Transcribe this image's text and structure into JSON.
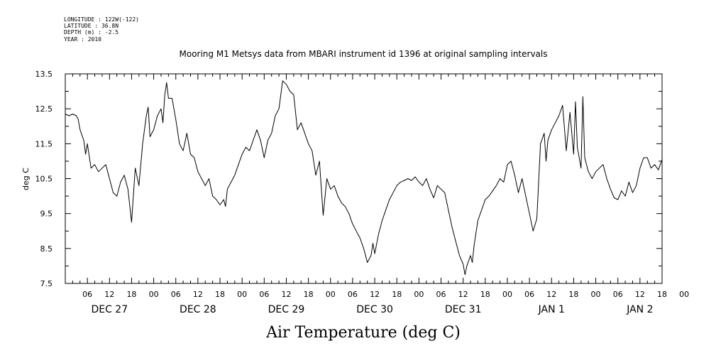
{
  "meta": {
    "longitude": "LONGITUDE : 122W(-122)",
    "latitude": "LATITUDE : 36.8N",
    "depth": "DEPTH (m) : -2.5",
    "year": "YEAR : 2010"
  },
  "chart_data": {
    "type": "line",
    "title": "Mooring M1 Metsys data from MBARI instrument id 1396 at original sampling intervals",
    "xlabel": "Air Temperature (deg C)",
    "ylabel": "deg C",
    "ylim": [
      7.5,
      13.5
    ],
    "yticks": [
      "13.5",
      "12.5",
      "11.5",
      "10.5",
      "9.5",
      "8.5",
      "7.5"
    ],
    "xlim_hours": [
      0,
      162
    ],
    "hour_ticks": [
      "06",
      "12",
      "18",
      "00",
      "06",
      "12",
      "18",
      "00",
      "06",
      "12",
      "18",
      "00",
      "06",
      "12",
      "18",
      "00",
      "06",
      "12",
      "18",
      "00",
      "06",
      "12",
      "18",
      "00",
      "06",
      "12",
      "18",
      "00"
    ],
    "day_labels": [
      "DEC 27",
      "DEC 28",
      "DEC 29",
      "DEC 30",
      "DEC 31",
      "JAN  1",
      "JAN  2"
    ],
    "grid": false,
    "series": [
      {
        "values": [
          [
            0,
            12.35
          ],
          [
            1,
            12.3
          ],
          [
            2,
            12.35
          ],
          [
            3,
            12.3
          ],
          [
            3.5,
            12.2
          ],
          [
            4,
            11.9
          ],
          [
            5,
            11.6
          ],
          [
            5.5,
            11.2
          ],
          [
            6,
            11.5
          ],
          [
            7,
            10.8
          ],
          [
            8,
            10.9
          ],
          [
            9,
            10.7
          ],
          [
            10,
            10.8
          ],
          [
            11,
            10.9
          ],
          [
            12,
            10.5
          ],
          [
            13,
            10.1
          ],
          [
            14,
            10.0
          ],
          [
            15,
            10.4
          ],
          [
            16,
            10.6
          ],
          [
            17,
            10.2
          ],
          [
            18,
            9.25
          ],
          [
            19,
            10.8
          ],
          [
            20,
            10.3
          ],
          [
            21,
            11.5
          ],
          [
            22,
            12.3
          ],
          [
            22.5,
            12.55
          ],
          [
            23,
            11.7
          ],
          [
            24,
            11.9
          ],
          [
            25,
            12.3
          ],
          [
            26,
            12.5
          ],
          [
            26.5,
            12.1
          ],
          [
            27,
            12.9
          ],
          [
            27.5,
            13.25
          ],
          [
            28,
            12.8
          ],
          [
            29,
            12.8
          ],
          [
            30,
            12.2
          ],
          [
            31,
            11.5
          ],
          [
            32,
            11.3
          ],
          [
            33,
            11.8
          ],
          [
            34,
            11.2
          ],
          [
            35,
            11.1
          ],
          [
            36,
            10.7
          ],
          [
            37,
            10.5
          ],
          [
            38,
            10.3
          ],
          [
            39,
            10.5
          ],
          [
            40,
            10.0
          ],
          [
            41,
            9.9
          ],
          [
            42,
            9.75
          ],
          [
            43,
            9.9
          ],
          [
            43.5,
            9.7
          ],
          [
            44,
            10.2
          ],
          [
            45,
            10.4
          ],
          [
            46,
            10.6
          ],
          [
            47,
            10.9
          ],
          [
            48,
            11.2
          ],
          [
            49,
            11.4
          ],
          [
            50,
            11.3
          ],
          [
            51,
            11.6
          ],
          [
            52,
            11.9
          ],
          [
            53,
            11.6
          ],
          [
            54,
            11.1
          ],
          [
            55,
            11.6
          ],
          [
            56,
            11.8
          ],
          [
            57,
            12.3
          ],
          [
            58,
            12.5
          ],
          [
            59,
            13.3
          ],
          [
            60,
            13.2
          ],
          [
            61,
            13.0
          ],
          [
            62,
            12.9
          ],
          [
            63,
            11.9
          ],
          [
            64,
            12.1
          ],
          [
            65,
            11.8
          ],
          [
            66,
            11.5
          ],
          [
            67,
            11.3
          ],
          [
            68,
            10.6
          ],
          [
            69,
            11.0
          ],
          [
            70,
            9.45
          ],
          [
            71,
            10.5
          ],
          [
            72,
            10.2
          ],
          [
            73,
            10.3
          ],
          [
            74,
            10.0
          ],
          [
            75,
            9.8
          ],
          [
            76,
            9.7
          ],
          [
            77,
            9.5
          ],
          [
            78,
            9.2
          ],
          [
            79,
            9.0
          ],
          [
            80,
            8.8
          ],
          [
            81,
            8.5
          ],
          [
            82,
            8.1
          ],
          [
            83,
            8.3
          ],
          [
            83.5,
            8.65
          ],
          [
            84,
            8.35
          ],
          [
            85,
            8.9
          ],
          [
            86,
            9.3
          ],
          [
            87,
            9.6
          ],
          [
            88,
            9.9
          ],
          [
            89,
            10.1
          ],
          [
            90,
            10.3
          ],
          [
            91,
            10.4
          ],
          [
            92,
            10.45
          ],
          [
            93,
            10.5
          ],
          [
            94,
            10.45
          ],
          [
            95,
            10.55
          ],
          [
            96,
            10.4
          ],
          [
            97,
            10.3
          ],
          [
            98,
            10.5
          ],
          [
            99,
            10.2
          ],
          [
            100,
            9.95
          ],
          [
            101,
            10.3
          ],
          [
            102,
            10.2
          ],
          [
            103,
            10.1
          ],
          [
            104,
            9.6
          ],
          [
            105,
            9.1
          ],
          [
            106,
            8.7
          ],
          [
            107,
            8.3
          ],
          [
            108,
            8.05
          ],
          [
            108.5,
            7.75
          ],
          [
            109,
            8.0
          ],
          [
            110,
            8.3
          ],
          [
            110.5,
            8.1
          ],
          [
            111,
            8.6
          ],
          [
            112,
            9.3
          ],
          [
            113,
            9.6
          ],
          [
            114,
            9.9
          ],
          [
            115,
            10.0
          ],
          [
            116,
            10.15
          ],
          [
            117,
            10.3
          ],
          [
            118,
            10.5
          ],
          [
            119,
            10.4
          ],
          [
            120,
            10.9
          ],
          [
            121,
            11.0
          ],
          [
            122,
            10.6
          ],
          [
            123,
            10.1
          ],
          [
            124,
            10.5
          ],
          [
            125,
            10.0
          ],
          [
            126,
            9.5
          ],
          [
            127,
            9.0
          ],
          [
            128,
            9.35
          ],
          [
            129,
            11.5
          ],
          [
            130,
            11.8
          ],
          [
            130.5,
            11.0
          ],
          [
            131,
            11.6
          ],
          [
            132,
            11.9
          ],
          [
            133,
            12.1
          ],
          [
            134,
            12.3
          ],
          [
            135,
            12.6
          ],
          [
            136,
            11.3
          ],
          [
            137,
            12.4
          ],
          [
            138,
            11.2
          ],
          [
            138.5,
            12.7
          ],
          [
            139,
            11.4
          ],
          [
            140,
            10.8
          ],
          [
            140.5,
            12.85
          ],
          [
            141,
            11.1
          ],
          [
            142,
            10.7
          ],
          [
            143,
            10.5
          ],
          [
            144,
            10.7
          ],
          [
            145,
            10.8
          ],
          [
            146,
            10.9
          ],
          [
            147,
            10.5
          ],
          [
            148,
            10.2
          ],
          [
            149,
            9.95
          ],
          [
            150,
            9.9
          ],
          [
            151,
            10.15
          ],
          [
            152,
            10.0
          ],
          [
            153,
            10.4
          ],
          [
            154,
            10.1
          ],
          [
            155,
            10.3
          ],
          [
            156,
            10.8
          ],
          [
            157,
            11.1
          ],
          [
            158,
            11.1
          ],
          [
            159,
            10.8
          ],
          [
            160,
            10.9
          ],
          [
            161,
            10.75
          ],
          [
            162,
            11.05
          ]
        ]
      }
    ]
  }
}
